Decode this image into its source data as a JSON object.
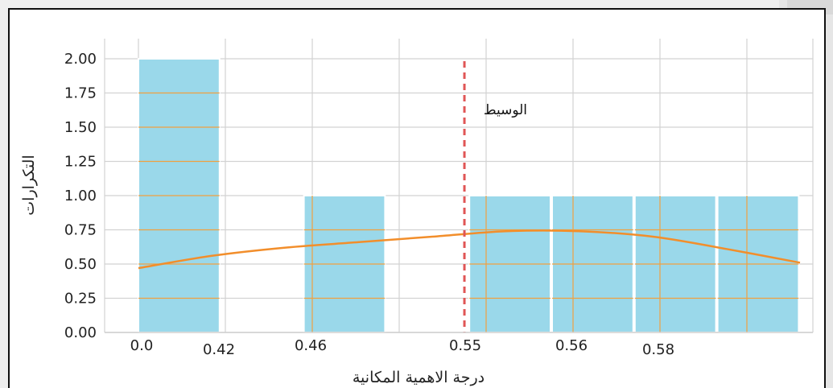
{
  "chart_data": {
    "type": "bar",
    "subtype": "histogram-with-kde",
    "categories": [
      "0.0",
      "0.42",
      "0.46",
      "0.55",
      "0.56",
      "0.58"
    ],
    "bins": [
      {
        "value": 2
      },
      {
        "value": 0
      },
      {
        "value": 1
      },
      {
        "value": 0
      },
      {
        "value": 1
      },
      {
        "value": 1
      },
      {
        "value": 1
      },
      {
        "value": 1
      }
    ],
    "kde_line": {
      "color": "#f28e2b",
      "values": [
        0.47,
        0.56,
        0.62,
        0.66,
        0.7,
        0.74,
        0.74,
        0.7,
        0.61,
        0.51
      ]
    },
    "median_line": {
      "position_bins": 3.94,
      "label": "الوسيط",
      "color": "#e05555"
    },
    "xlabel": "درجة الاهمية المكانية",
    "ylabel": "التكرارات",
    "ylim": [
      0,
      2.0
    ],
    "yticks": [
      "0.00",
      "0.25",
      "0.50",
      "0.75",
      "1.00",
      "1.25",
      "1.50",
      "1.75",
      "2.00"
    ],
    "bar_color": "#9ad8ea",
    "grid": true
  }
}
